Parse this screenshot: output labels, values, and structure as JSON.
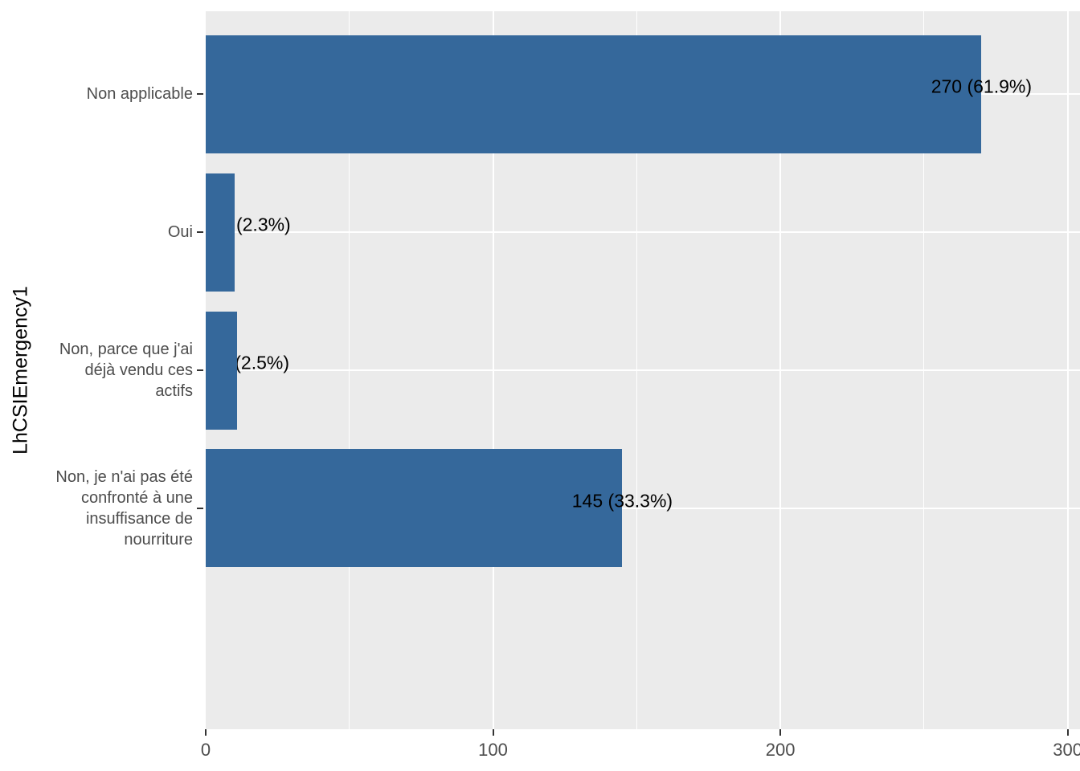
{
  "figure": {
    "background": "#FFFFFF",
    "panel_background": "#EBEBEB",
    "grid_color": "#FFFFFF",
    "axis_text_color": "#4D4D4D",
    "label_text_color": "#000000"
  },
  "chart_data": {
    "type": "bar",
    "orientation": "horizontal",
    "title": "",
    "xlabel": "",
    "ylabel": "LhCSIEmergency1",
    "categories": [
      "Non applicable",
      "Oui",
      "Non, parce que j'ai déjà vendu ces actifs",
      "Non, je n'ai pas été confronté à une insuffisance de nourriture"
    ],
    "category_display_lines": [
      [
        "Non applicable"
      ],
      [
        "Oui"
      ],
      [
        "Non, parce que j'ai",
        "déjà vendu ces",
        "actifs"
      ],
      [
        "Non, je n'ai pas été",
        "confronté à une",
        "insuffisance de",
        "nourriture"
      ]
    ],
    "values": [
      270,
      10,
      11,
      145
    ],
    "percents": [
      61.9,
      2.3,
      2.5,
      33.3
    ],
    "bar_labels": [
      "270 (61.9%)",
      "10 (2.3%)",
      "11 (2.5%)",
      "145 (33.3%)"
    ],
    "bar_color": "#35689B",
    "x_ticks": [
      0,
      100,
      200,
      300
    ],
    "x_minor_ticks": [
      50,
      150,
      250
    ],
    "xlim": [
      0,
      304.3
    ],
    "grid": true,
    "legend_position": "none"
  }
}
